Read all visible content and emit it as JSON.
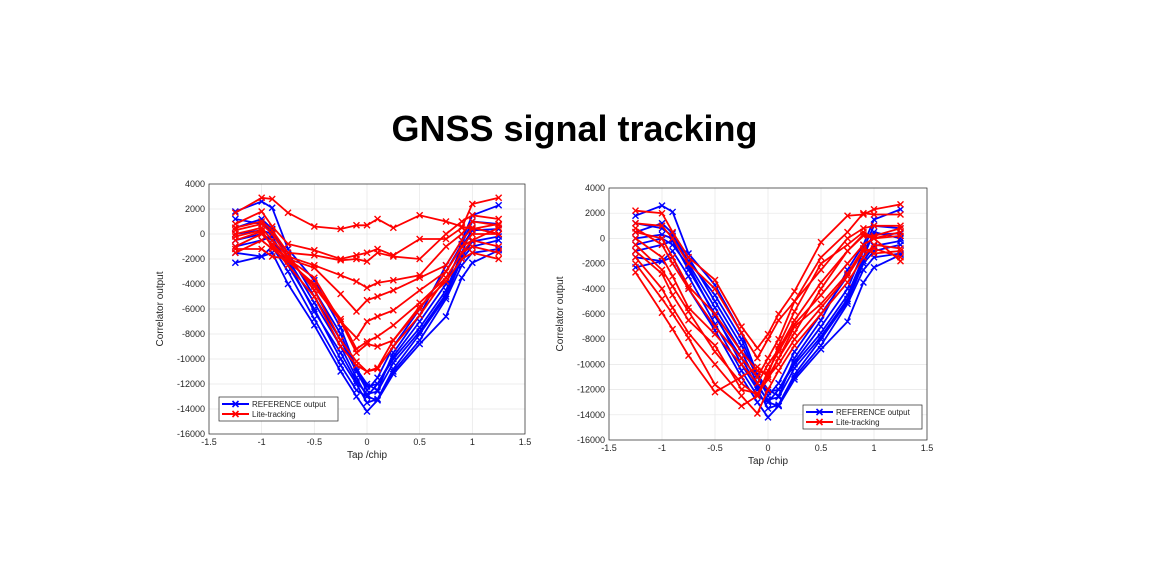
{
  "title": "GNSS signal tracking",
  "colors": {
    "reference": "#0000ff",
    "lite": "#ff0000",
    "grid": "#e6e6e6",
    "axis": "#262626"
  },
  "chart_data": [
    {
      "type": "line",
      "xlabel": "Tap /chip",
      "ylabel": "Correlator output",
      "xlim": [
        -1.5,
        1.5
      ],
      "ylim": [
        -16000,
        4000
      ],
      "xticks": [
        -1.5,
        -1,
        -0.5,
        0,
        0.5,
        1,
        1.5
      ],
      "yticks": [
        -16000,
        -14000,
        -12000,
        -10000,
        -8000,
        -6000,
        -4000,
        -2000,
        0,
        2000,
        4000
      ],
      "grid": true,
      "marker": "x",
      "legend": {
        "placement": "bottom-left",
        "entries": [
          "REFERENCE output",
          "Lite-tracking"
        ]
      },
      "x": [
        -1.25,
        -1,
        -0.9,
        -0.75,
        -0.5,
        -0.25,
        -0.1,
        0,
        0.1,
        0.25,
        0.5,
        0.75,
        0.9,
        1,
        1.25
      ],
      "series": [
        {
          "group": "REFERENCE output",
          "values": [
            -2300,
            -1800,
            -1500,
            -4000,
            -7300,
            -11000,
            -13000,
            -14200,
            -13300,
            -11200,
            -8800,
            -6600,
            -3500,
            -2300,
            -1300
          ]
        },
        {
          "group": "REFERENCE output",
          "values": [
            1800,
            2600,
            2100,
            -1200,
            -3700,
            -7500,
            -10800,
            -12000,
            -12500,
            -9500,
            -6500,
            -2500,
            -500,
            1500,
            2300
          ]
        },
        {
          "group": "REFERENCE output",
          "values": [
            500,
            1200,
            400,
            -2000,
            -5500,
            -9000,
            -11500,
            -13000,
            -12000,
            -10000,
            -7500,
            -4500,
            -1500,
            500,
            0
          ]
        },
        {
          "group": "REFERENCE output",
          "values": [
            -1000,
            -500,
            -200,
            -2500,
            -6000,
            -10000,
            -12000,
            -13500,
            -13200,
            -10800,
            -8000,
            -5000,
            -2000,
            -1000,
            -500
          ]
        },
        {
          "group": "REFERENCE output",
          "values": [
            0,
            300,
            0,
            -1800,
            -4500,
            -8000,
            -11000,
            -12500,
            -11500,
            -9000,
            -6000,
            -3000,
            -800,
            1000,
            800
          ]
        },
        {
          "group": "REFERENCE output",
          "values": [
            -1500,
            -1800,
            -1000,
            -3000,
            -6800,
            -10500,
            -12500,
            -13000,
            -13300,
            -11000,
            -8500,
            -5200,
            -2500,
            -1500,
            -1200
          ]
        },
        {
          "group": "REFERENCE output",
          "values": [
            1200,
            800,
            200,
            -1500,
            -5000,
            -8500,
            -11000,
            -12200,
            -12000,
            -9800,
            -7000,
            -4000,
            -1000,
            300,
            400
          ]
        },
        {
          "group": "REFERENCE output",
          "values": [
            -500,
            0,
            -500,
            -2200,
            -6200,
            -9500,
            -11800,
            -12800,
            -12600,
            -10300,
            -7800,
            -4800,
            -1800,
            -600,
            -200
          ]
        },
        {
          "group": "Lite-tracking",
          "values": [
            1700,
            2900,
            2800,
            1700,
            600,
            400,
            700,
            700,
            1200,
            500,
            1500,
            1000,
            600,
            400,
            800
          ]
        },
        {
          "group": "Lite-tracking",
          "values": [
            800,
            1800,
            600,
            -800,
            -1300,
            -2000,
            -1700,
            -1500,
            -1200,
            -1700,
            -400,
            -400,
            500,
            2400,
            2900
          ]
        },
        {
          "group": "Lite-tracking",
          "values": [
            500,
            1000,
            300,
            -1500,
            -1700,
            -2100,
            -2000,
            -2200,
            -1500,
            -1800,
            -2000,
            0,
            1000,
            1500,
            1200
          ]
        },
        {
          "group": "Lite-tracking",
          "values": [
            0,
            500,
            -500,
            -1800,
            -2500,
            -3300,
            -3800,
            -4300,
            -3900,
            -3700,
            -3300,
            -1000,
            0,
            1000,
            700
          ]
        },
        {
          "group": "Lite-tracking",
          "values": [
            -500,
            200,
            -1000,
            -2000,
            -2700,
            -4800,
            -6200,
            -5300,
            -5000,
            -4500,
            -3500,
            -2500,
            -500,
            500,
            0
          ]
        },
        {
          "group": "Lite-tracking",
          "values": [
            -1000,
            0,
            -800,
            -2000,
            -3500,
            -7000,
            -8300,
            -7000,
            -6600,
            -6100,
            -4500,
            -3000,
            -1000,
            -500,
            -1000
          ]
        },
        {
          "group": "Lite-tracking",
          "values": [
            -1500,
            -500,
            -1200,
            -2200,
            -4000,
            -6800,
            -9200,
            -8600,
            -8200,
            -7300,
            -5500,
            -3500,
            -1500,
            -1000,
            -1500
          ]
        },
        {
          "group": "Lite-tracking",
          "values": [
            -1200,
            -1200,
            -1800,
            -2000,
            -4200,
            -7000,
            -9500,
            -8800,
            -9000,
            -8500,
            -5800,
            -3800,
            -2000,
            -1500,
            -2000
          ]
        },
        {
          "group": "Lite-tracking",
          "values": [
            -200,
            300,
            -1000,
            -2500,
            -5000,
            -9000,
            -10500,
            -11000,
            -10700,
            -8500,
            -6000,
            -3000,
            -1000,
            0,
            0
          ]
        },
        {
          "group": "Lite-tracking",
          "values": [
            300,
            800,
            0,
            -1800,
            -4500,
            -8500,
            -10200,
            -11000,
            -10800,
            -9000,
            -6500,
            -3500,
            -1500,
            -500,
            500
          ]
        }
      ]
    },
    {
      "type": "line",
      "xlabel": "Tap /chip",
      "ylabel": "Correlator output",
      "xlim": [
        -1.5,
        1.5
      ],
      "ylim": [
        -16000,
        4000
      ],
      "xticks": [
        -1.5,
        -1,
        -0.5,
        0,
        0.5,
        1,
        1.5
      ],
      "yticks": [
        -16000,
        -14000,
        -12000,
        -10000,
        -8000,
        -6000,
        -4000,
        -2000,
        0,
        2000,
        4000
      ],
      "grid": true,
      "marker": "x",
      "legend": {
        "placement": "bottom-right",
        "entries": [
          "REFERENCE output",
          "Lite-tracking"
        ]
      },
      "x": [
        -1.25,
        -1,
        -0.9,
        -0.75,
        -0.5,
        -0.25,
        -0.1,
        0,
        0.1,
        0.25,
        0.5,
        0.75,
        0.9,
        1,
        1.25
      ],
      "series": [
        {
          "group": "REFERENCE output",
          "values": [
            -2300,
            -1800,
            -1500,
            -4000,
            -7300,
            -11000,
            -13000,
            -14200,
            -13300,
            -11200,
            -8800,
            -6600,
            -3500,
            -2300,
            -1300
          ]
        },
        {
          "group": "REFERENCE output",
          "values": [
            1800,
            2600,
            2100,
            -1200,
            -3700,
            -7500,
            -10800,
            -12000,
            -12500,
            -9500,
            -6500,
            -2500,
            -500,
            1500,
            2300
          ]
        },
        {
          "group": "REFERENCE output",
          "values": [
            500,
            1200,
            400,
            -2000,
            -5500,
            -9000,
            -11500,
            -13000,
            -12000,
            -10000,
            -7500,
            -4500,
            -1500,
            500,
            0
          ]
        },
        {
          "group": "REFERENCE output",
          "values": [
            -1000,
            -500,
            -200,
            -2500,
            -6000,
            -10000,
            -12000,
            -13500,
            -13200,
            -10800,
            -8000,
            -5000,
            -2000,
            -1000,
            -500
          ]
        },
        {
          "group": "REFERENCE output",
          "values": [
            0,
            300,
            0,
            -1800,
            -4500,
            -8000,
            -11000,
            -12500,
            -11500,
            -9000,
            -6000,
            -3000,
            -800,
            1000,
            800
          ]
        },
        {
          "group": "REFERENCE output",
          "values": [
            -1500,
            -1800,
            -1000,
            -3000,
            -6800,
            -10500,
            -12500,
            -13000,
            -13300,
            -11000,
            -8500,
            -5200,
            -2500,
            -1500,
            -1200
          ]
        },
        {
          "group": "REFERENCE output",
          "values": [
            1200,
            800,
            200,
            -1500,
            -5000,
            -8500,
            -11000,
            -12200,
            -12000,
            -9800,
            -7000,
            -4000,
            -1000,
            300,
            400
          ]
        },
        {
          "group": "REFERENCE output",
          "values": [
            -500,
            0,
            -500,
            -2200,
            -6200,
            -9500,
            -11800,
            -12800,
            -12600,
            -10300,
            -7800,
            -4800,
            -1800,
            -600,
            -200
          ]
        },
        {
          "group": "Lite-tracking",
          "values": [
            2200,
            2000,
            500,
            -1500,
            -3300,
            -7000,
            -8700,
            -7600,
            -6000,
            -4200,
            -300,
            1800,
            1900,
            2300,
            2700
          ]
        },
        {
          "group": "Lite-tracking",
          "values": [
            1200,
            1000,
            0,
            -2000,
            -4000,
            -7500,
            -9500,
            -8000,
            -6500,
            -5000,
            -1500,
            500,
            2000,
            1900,
            1900
          ]
        },
        {
          "group": "Lite-tracking",
          "values": [
            -2700,
            -5900,
            -7200,
            -9300,
            -12200,
            -11000,
            -10200,
            -11000,
            -9500,
            -7500,
            -4000,
            -1000,
            200,
            0,
            -1800
          ]
        },
        {
          "group": "Lite-tracking",
          "values": [
            -2000,
            -4800,
            -6000,
            -7900,
            -11600,
            -13300,
            -12500,
            -11000,
            -10000,
            -8000,
            -5500,
            -3000,
            -1000,
            -800,
            -1500
          ]
        },
        {
          "group": "Lite-tracking",
          "values": [
            -1500,
            -4000,
            -5500,
            -7500,
            -10000,
            -12500,
            -13900,
            -12000,
            -10500,
            -8500,
            -6000,
            -3500,
            -1500,
            -500,
            -800
          ]
        },
        {
          "group": "Lite-tracking",
          "values": [
            -500,
            -2500,
            -3800,
            -5800,
            -9000,
            -11500,
            -12500,
            -10500,
            -9000,
            -6800,
            -4500,
            -2000,
            -500,
            0,
            500
          ]
        },
        {
          "group": "Lite-tracking",
          "values": [
            0,
            -1500,
            -3000,
            -5500,
            -7600,
            -10000,
            -11500,
            -10000,
            -8800,
            -6500,
            -3500,
            -1000,
            300,
            200,
            800
          ]
        },
        {
          "group": "Lite-tracking",
          "values": [
            800,
            -500,
            -2000,
            -4000,
            -7000,
            -9500,
            -11000,
            -9500,
            -8000,
            -5000,
            -2500,
            0,
            800,
            1000,
            1000
          ]
        },
        {
          "group": "Lite-tracking",
          "values": [
            -1000,
            -2800,
            -4500,
            -6500,
            -8500,
            -12000,
            -12300,
            -11200,
            -9500,
            -7000,
            -5200,
            -2800,
            -800,
            -1200,
            -1000
          ]
        },
        {
          "group": "Lite-tracking",
          "values": [
            500,
            0,
            -1500,
            -3800,
            -6000,
            -9000,
            -10500,
            -10800,
            -8500,
            -5800,
            -2000,
            -500,
            500,
            0,
            200
          ]
        }
      ]
    }
  ]
}
